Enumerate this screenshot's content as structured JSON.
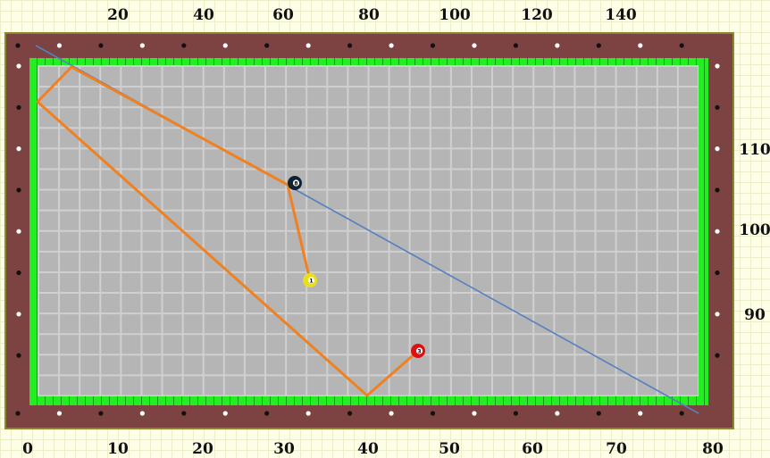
{
  "axes": {
    "top": [
      "20",
      "40",
      "60",
      "80",
      "100",
      "120",
      "140"
    ],
    "bottom": [
      "0",
      "10",
      "20",
      "30",
      "40",
      "50",
      "60",
      "70",
      "80"
    ],
    "right": [
      "110",
      "100",
      "90"
    ]
  },
  "balls": [
    {
      "label": "8",
      "color": "#0f2233"
    },
    {
      "label": "1",
      "color": "#e6e020"
    },
    {
      "label": "3",
      "color": "#dd1111"
    }
  ],
  "colors": {
    "rail": "#7d4343",
    "cushion": "#22ee22",
    "felt": "#b5b5b5",
    "path": "#f08020",
    "aim": "#5580c0"
  }
}
